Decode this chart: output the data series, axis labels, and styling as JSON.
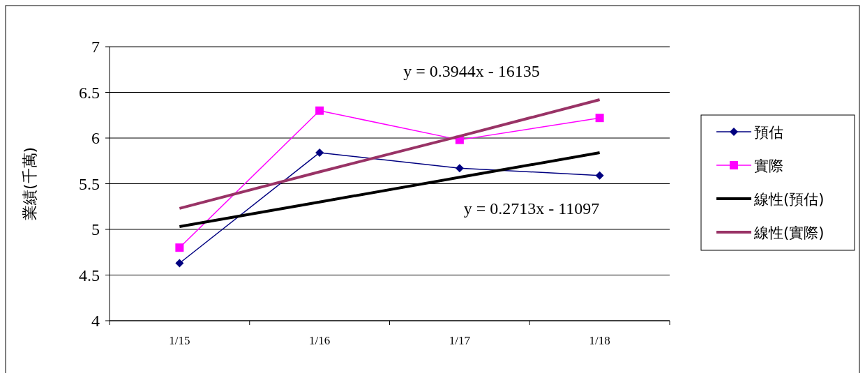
{
  "chart_data": {
    "type": "line",
    "ylabel": "業績(千萬)",
    "categories": [
      "1/15",
      "1/16",
      "1/17",
      "1/18"
    ],
    "series": [
      {
        "name": "預估",
        "color": "#000080",
        "values": [
          4.63,
          5.84,
          5.67,
          5.59
        ],
        "marker": "diamond"
      },
      {
        "name": "實際",
        "color": "#ff00ff",
        "values": [
          4.8,
          6.3,
          5.98,
          6.22
        ],
        "marker": "square"
      },
      {
        "name": "線性(預估)",
        "color": "#000000",
        "values": [
          5.03,
          5.3,
          5.57,
          5.84
        ],
        "marker": "none"
      },
      {
        "name": "線性(實際)",
        "color": "#993366",
        "values": [
          5.23,
          5.63,
          6.02,
          6.42
        ],
        "marker": "none"
      }
    ],
    "annotations": [
      "y = 0.3944x - 16135",
      "y = 0.2713x - 11097"
    ],
    "ylim": [
      4,
      7
    ],
    "yticks": [
      4,
      4.5,
      5,
      5.5,
      6,
      6.5,
      7
    ],
    "grid": "y",
    "legend": "right"
  }
}
